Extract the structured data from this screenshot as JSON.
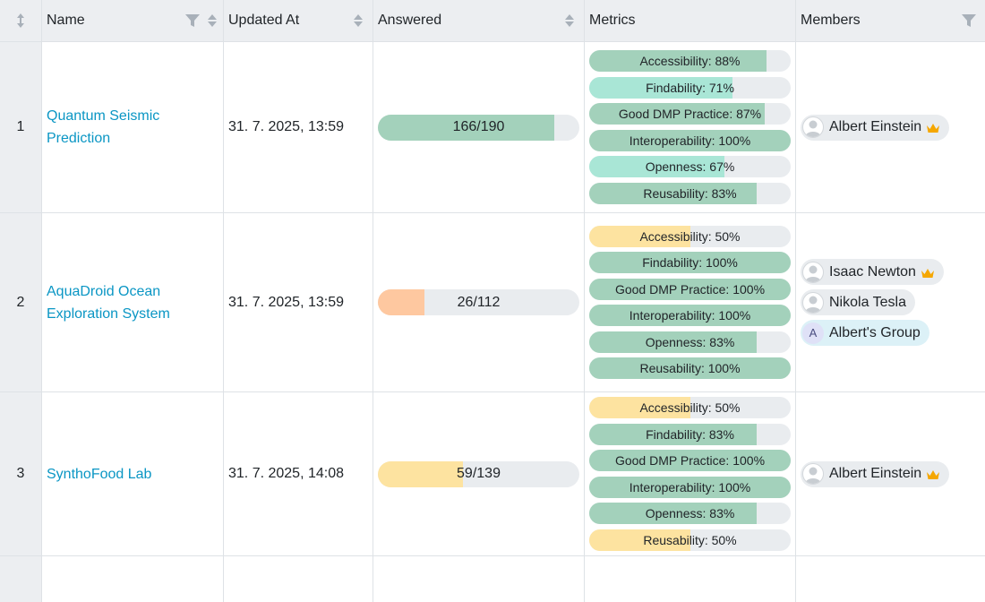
{
  "columns": {
    "name": "Name",
    "updated_at": "Updated At",
    "answered": "Answered",
    "metrics": "Metrics",
    "members": "Members"
  },
  "colors": {
    "link": "#0a96c4",
    "green": "#a3d1bb",
    "mint": "#a9e6d6",
    "yellow": "#fde3a0",
    "orange": "#fec8a0",
    "track": "#e9ecef",
    "header_bg": "#eceef1",
    "crown": "#f5a700"
  },
  "rows": [
    {
      "index": "1",
      "name": "Quantum Seismic Prediction",
      "updated_at": "31. 7. 2025, 13:59",
      "answered": {
        "text": "166/190",
        "value": 0.874,
        "color": "#a3d1bb"
      },
      "metrics": [
        {
          "label": "Accessibility: 88%",
          "value": 0.88,
          "color": "#a3d1bb"
        },
        {
          "label": "Findability: 71%",
          "value": 0.71,
          "color": "#a9e6d6"
        },
        {
          "label": "Good DMP Practice: 87%",
          "value": 0.87,
          "color": "#a3d1bb"
        },
        {
          "label": "Interoperability: 100%",
          "value": 1.0,
          "color": "#a3d1bb"
        },
        {
          "label": "Openness: 67%",
          "value": 0.67,
          "color": "#a9e6d6"
        },
        {
          "label": "Reusability: 83%",
          "value": 0.83,
          "color": "#a3d1bb"
        }
      ],
      "members": [
        {
          "name": "Albert Einstein",
          "kind": "user",
          "owner": true
        }
      ]
    },
    {
      "index": "2",
      "name": "AquaDroid Ocean Exploration System",
      "updated_at": "31. 7. 2025, 13:59",
      "answered": {
        "text": "26/112",
        "value": 0.232,
        "color": "#fec8a0"
      },
      "metrics": [
        {
          "label": "Accessibility: 50%",
          "value": 0.5,
          "color": "#fde3a0"
        },
        {
          "label": "Findability: 100%",
          "value": 1.0,
          "color": "#a3d1bb"
        },
        {
          "label": "Good DMP Practice: 100%",
          "value": 1.0,
          "color": "#a3d1bb"
        },
        {
          "label": "Interoperability: 100%",
          "value": 1.0,
          "color": "#a3d1bb"
        },
        {
          "label": "Openness: 83%",
          "value": 0.83,
          "color": "#a3d1bb"
        },
        {
          "label": "Reusability: 100%",
          "value": 1.0,
          "color": "#a3d1bb"
        }
      ],
      "members": [
        {
          "name": "Isaac Newton",
          "kind": "user",
          "owner": true
        },
        {
          "name": "Nikola Tesla",
          "kind": "user",
          "owner": false
        },
        {
          "name": "Albert's Group",
          "kind": "group",
          "initial": "A",
          "owner": false
        }
      ]
    },
    {
      "index": "3",
      "name": "SynthoFood Lab",
      "updated_at": "31. 7. 2025, 14:08",
      "answered": {
        "text": "59/139",
        "value": 0.424,
        "color": "#fde3a0"
      },
      "metrics": [
        {
          "label": "Accessibility: 50%",
          "value": 0.5,
          "color": "#fde3a0"
        },
        {
          "label": "Findability: 83%",
          "value": 0.83,
          "color": "#a3d1bb"
        },
        {
          "label": "Good DMP Practice: 100%",
          "value": 1.0,
          "color": "#a3d1bb"
        },
        {
          "label": "Interoperability: 100%",
          "value": 1.0,
          "color": "#a3d1bb"
        },
        {
          "label": "Openness: 83%",
          "value": 0.83,
          "color": "#a3d1bb"
        },
        {
          "label": "Reusability: 50%",
          "value": 0.5,
          "color": "#fde3a0"
        }
      ],
      "members": [
        {
          "name": "Albert Einstein",
          "kind": "user",
          "owner": true
        }
      ]
    }
  ]
}
